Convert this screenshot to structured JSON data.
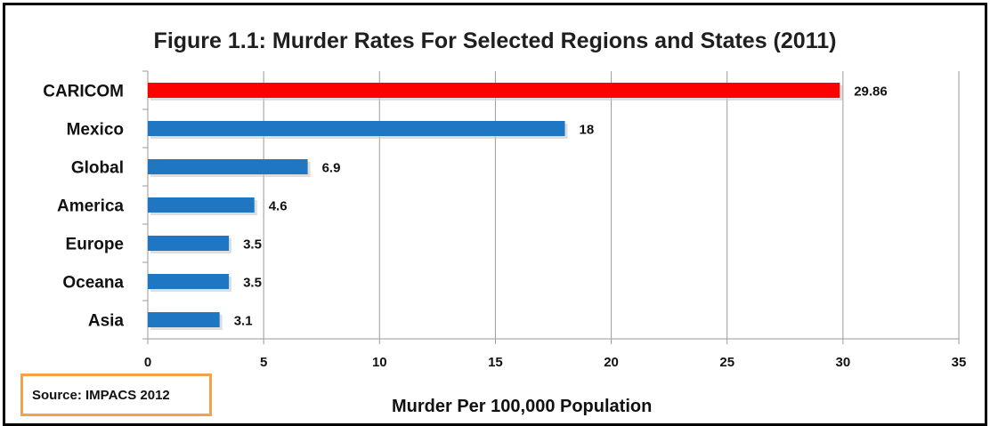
{
  "chart_data": {
    "type": "bar",
    "orientation": "horizontal",
    "title": "Figure 1.1: Murder Rates For Selected Regions and States (2011)",
    "xlabel": "Murder Per 100,000 Population",
    "ylabel": "",
    "categories": [
      "CARICOM",
      "Mexico",
      "Global",
      "America",
      "Europe",
      "Oceana",
      "Asia"
    ],
    "values": [
      29.86,
      18,
      6.9,
      4.6,
      3.5,
      3.5,
      3.1
    ],
    "data_labels": [
      "29.86",
      "18",
      "6.9",
      "4.6",
      "3.5",
      "3.5",
      "3.1"
    ],
    "colors": [
      "#ff0000",
      "#1f77c4",
      "#1f77c4",
      "#1f77c4",
      "#1f77c4",
      "#1f77c4",
      "#1f77c4"
    ],
    "xlim": [
      0,
      35
    ],
    "xticks": [
      0,
      5,
      10,
      15,
      20,
      25,
      30,
      35
    ],
    "grid": "vertical",
    "legend": "none"
  },
  "source": "Source: IMPACS 2012",
  "colors": {
    "highlight": "#ff0000",
    "bar": "#1f77c4",
    "frame": "#000000",
    "source_border": "#f5a04a"
  }
}
